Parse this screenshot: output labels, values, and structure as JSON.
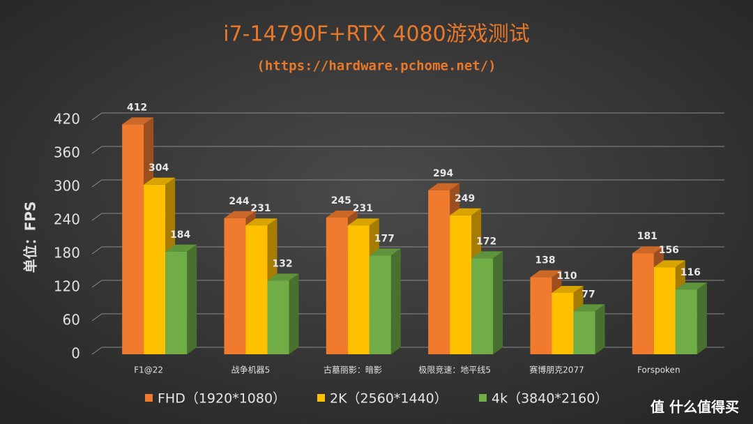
{
  "chart_data": {
    "type": "bar3d",
    "title": "i7-14790F+RTX 4080游戏测试",
    "subtitle": "(https://hardware.pchome.net/)",
    "y_label": "单位：FPS",
    "categories": [
      "F1@22",
      "战争机器5",
      "古墓丽影：暗影",
      "极限竞速：地平线5",
      "赛博朋克2077",
      "Forspoken"
    ],
    "series": [
      {
        "name": "FHD（1920*1080）",
        "color": "#f07a2e",
        "values": [
          412,
          244,
          245,
          294,
          138,
          181
        ]
      },
      {
        "name": "2K（2560*1440）",
        "color": "#ffc000",
        "values": [
          304,
          231,
          231,
          249,
          110,
          156
        ]
      },
      {
        "name": "4k（3840*2160）",
        "color": "#70ad47",
        "values": [
          184,
          132,
          177,
          172,
          77,
          116
        ]
      }
    ],
    "ylim": [
      0,
      420
    ],
    "yticks": [
      0,
      60,
      120,
      180,
      240,
      300,
      360,
      420
    ],
    "grid": true,
    "legend": "bottom",
    "watermark": "值 什么值得买"
  }
}
